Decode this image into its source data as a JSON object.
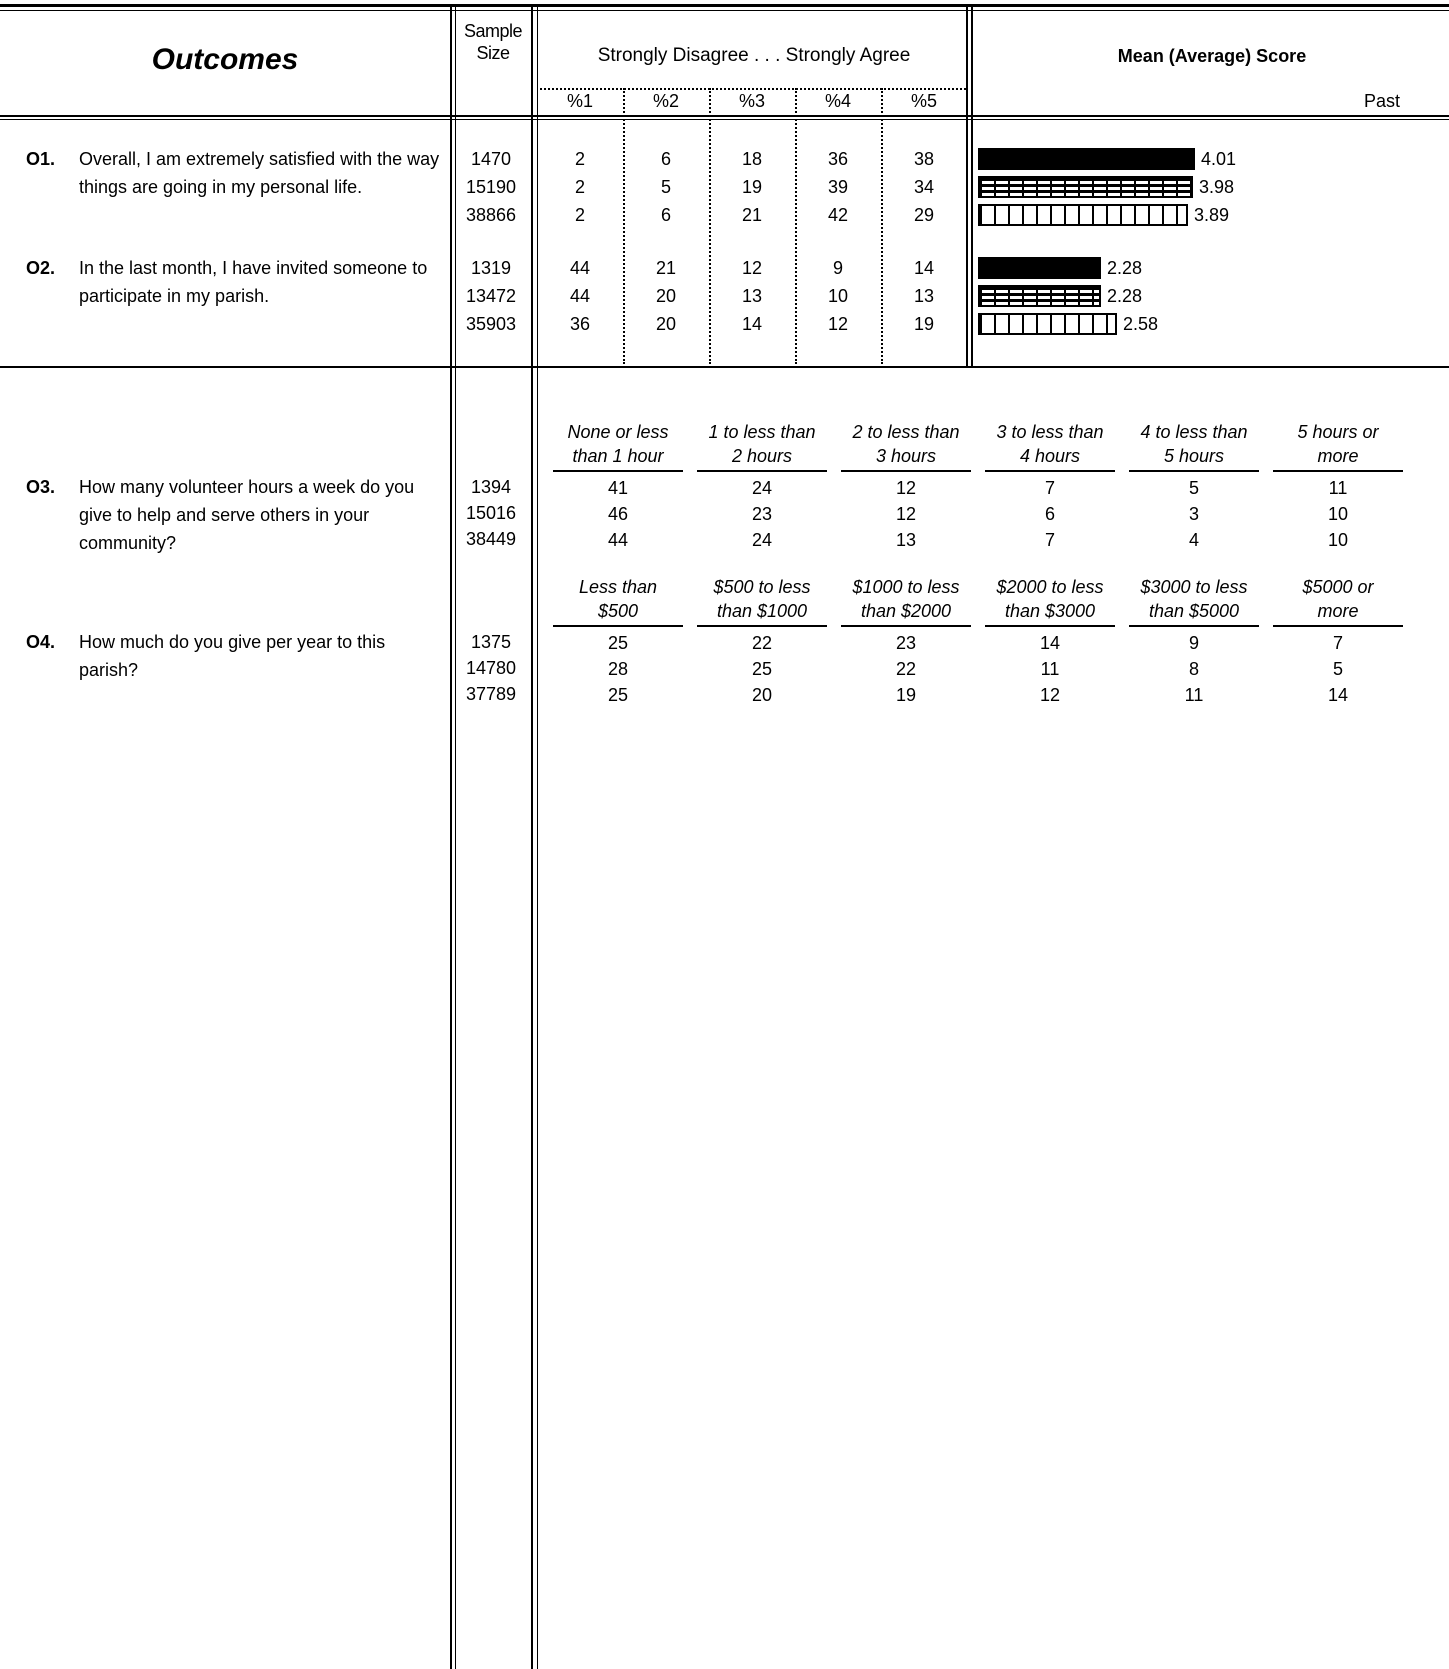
{
  "header": {
    "outcomes_title": "Outcomes",
    "sample_size_label": "Sample\nSize",
    "scale_label": "Strongly Disagree . . . Strongly Agree",
    "pct_cols": [
      "%1",
      "%2",
      "%3",
      "%4",
      "%5"
    ],
    "mean_title": "Mean (Average) Score",
    "past_label": "Past"
  },
  "likert_questions": [
    {
      "id": "O1.",
      "text": "Overall, I am extremely satisfied with the way things are going in my personal life.",
      "rows": [
        {
          "n": "1470",
          "pcts": [
            "2",
            "6",
            "18",
            "36",
            "38"
          ],
          "mean": "4.01"
        },
        {
          "n": "15190",
          "pcts": [
            "2",
            "5",
            "19",
            "39",
            "34"
          ],
          "mean": "3.98"
        },
        {
          "n": "38866",
          "pcts": [
            "2",
            "6",
            "21",
            "42",
            "29"
          ],
          "mean": "3.89"
        }
      ]
    },
    {
      "id": "O2.",
      "text": "In the last month, I have invited someone to participate in my parish.",
      "rows": [
        {
          "n": "1319",
          "pcts": [
            "44",
            "21",
            "12",
            "9",
            "14"
          ],
          "mean": "2.28"
        },
        {
          "n": "13472",
          "pcts": [
            "44",
            "20",
            "13",
            "10",
            "13"
          ],
          "mean": "2.28"
        },
        {
          "n": "35903",
          "pcts": [
            "36",
            "20",
            "14",
            "12",
            "19"
          ],
          "mean": "2.58"
        }
      ]
    }
  ],
  "category_questions": [
    {
      "id": "O3.",
      "text": "How many volunteer hours a week do you give to help and serve others in your community?",
      "categories": [
        [
          "None or less",
          "than 1 hour"
        ],
        [
          "1 to less than",
          "2 hours"
        ],
        [
          "2 to less than",
          "3 hours"
        ],
        [
          "3 to less than",
          "4 hours"
        ],
        [
          "4 to less than",
          "5 hours"
        ],
        [
          "5 hours or",
          "more"
        ]
      ],
      "rows": [
        {
          "n": "1394",
          "vals": [
            "41",
            "24",
            "12",
            "7",
            "5",
            "11"
          ]
        },
        {
          "n": "15016",
          "vals": [
            "46",
            "23",
            "12",
            "6",
            "3",
            "10"
          ]
        },
        {
          "n": "38449",
          "vals": [
            "44",
            "24",
            "13",
            "7",
            "4",
            "10"
          ]
        }
      ]
    },
    {
      "id": "O4.",
      "text": "How much do you give per year to this parish?",
      "categories": [
        [
          "Less than",
          "$500"
        ],
        [
          "$500 to less",
          "than $1000"
        ],
        [
          "$1000 to less",
          "than $2000"
        ],
        [
          "$2000 to less",
          "than $3000"
        ],
        [
          "$3000 to less",
          "than $5000"
        ],
        [
          "$5000 or",
          "more"
        ]
      ],
      "rows": [
        {
          "n": "1375",
          "vals": [
            "25",
            "22",
            "23",
            "14",
            "9",
            "7"
          ]
        },
        {
          "n": "14780",
          "vals": [
            "28",
            "25",
            "22",
            "11",
            "8",
            "5"
          ]
        },
        {
          "n": "37789",
          "vals": [
            "25",
            "20",
            "19",
            "12",
            "11",
            "14"
          ]
        }
      ]
    }
  ]
}
